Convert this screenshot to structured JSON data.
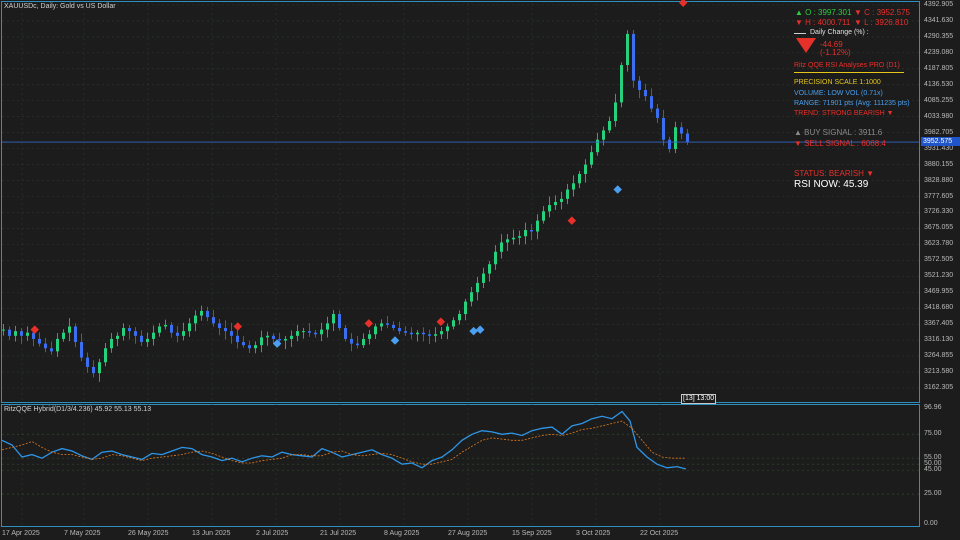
{
  "chart_header": {
    "symbol_line": "XAUUSDc, Daily:  Gold vs US Dollar"
  },
  "info_panel": {
    "open": "▲ O : 3997.301",
    "close": "▼ C : 3952.575",
    "high": "▼ H : 4000.711",
    "low": "▼ L : 3926.810",
    "daily_change_label": "Daily Change (%) :",
    "change_value": "-44.69",
    "change_pct": "(-1.12%)",
    "indicator_name": "Ritz QQE RSI Analyses PRO (D1)",
    "precision": "PRECISION SCALE 1:1000",
    "volume": "VOLUME: LOW VOL (0.71x)",
    "range": "RANGE: 71901 pts (Avg: 111235 pts)",
    "trend": "TREND: STRONG BEARISH ▼",
    "buy_signal": "▲ BUY SIGNAL : 3911.6",
    "sell_signal": "▼ SELL SIGNAL : 6068.4",
    "status": "STATUS: BEARISH ▼",
    "rsi_now": "RSI NOW: 45.39"
  },
  "price_axis": {
    "ticks": [
      "4392.905",
      "4341.630",
      "4290.355",
      "4239.080",
      "4187.805",
      "4136.530",
      "4085.255",
      "4033.980",
      "3982.705",
      "3931.430",
      "3880.155",
      "3828.880",
      "3777.605",
      "3726.330",
      "3675.055",
      "3623.780",
      "3572.505",
      "3521.230",
      "3469.955",
      "3418.680",
      "3367.405",
      "3316.130",
      "3264.855",
      "3213.580",
      "3162.305"
    ],
    "current_price": "3952.575"
  },
  "sub_window": {
    "title": "RitzQQE Hybrid(D1/3/4.236) 45.92 55.13 55.13",
    "ticks": [
      "96.96",
      "75.00",
      "55.00",
      "50.00",
      "45.00",
      "25.00",
      "0.00"
    ]
  },
  "time_axis": {
    "labels": [
      "17 Apr 2025",
      "7 May 2025",
      "26 May 2025",
      "13 Jun 2025",
      "2 Jul 2025",
      "21 Jul 2025",
      "8 Aug 2025",
      "27 Aug 2025",
      "15 Sep 2025",
      "3 Oct 2025",
      "22 Oct 2025"
    ],
    "crosshair_label": "[13] 13:00"
  },
  "colors": {
    "background": "#1c1c1c",
    "bull_candle": "#26d07c",
    "bear_candle": "#3b6ef0",
    "grid": "#2c3a2c",
    "pane_border": "#2f8fbf",
    "rsi_line": "#2e96e8",
    "signal_line": "#e07b1e",
    "up_text": "#2ecc40",
    "down_text": "#e8302a",
    "accent_yellow": "#e6c619",
    "info_blue": "#4a9ff0"
  },
  "chart_data": [
    {
      "type": "candlestick",
      "title": "XAUUSDc, Daily:  Gold vs US Dollar",
      "ylim": [
        3140,
        4400
      ],
      "close_path": [
        [
          0,
          3350
        ],
        [
          6,
          3330
        ],
        [
          12,
          3345
        ],
        [
          18,
          3330
        ],
        [
          24,
          3340
        ],
        [
          30,
          3320
        ],
        [
          36,
          3305
        ],
        [
          42,
          3290
        ],
        [
          48,
          3280
        ],
        [
          54,
          3320
        ],
        [
          60,
          3340
        ],
        [
          66,
          3360
        ],
        [
          72,
          3310
        ],
        [
          78,
          3260
        ],
        [
          84,
          3230
        ],
        [
          90,
          3210
        ],
        [
          96,
          3245
        ],
        [
          102,
          3290
        ],
        [
          108,
          3320
        ],
        [
          114,
          3330
        ],
        [
          120,
          3355
        ],
        [
          126,
          3345
        ],
        [
          132,
          3330
        ],
        [
          138,
          3310
        ],
        [
          144,
          3320
        ],
        [
          150,
          3340
        ],
        [
          156,
          3360
        ],
        [
          162,
          3365
        ],
        [
          168,
          3340
        ],
        [
          174,
          3330
        ],
        [
          180,
          3345
        ],
        [
          186,
          3370
        ],
        [
          192,
          3395
        ],
        [
          198,
          3410
        ],
        [
          204,
          3390
        ],
        [
          210,
          3370
        ],
        [
          216,
          3355
        ],
        [
          222,
          3345
        ],
        [
          228,
          3330
        ],
        [
          234,
          3310
        ],
        [
          240,
          3300
        ],
        [
          246,
          3290
        ],
        [
          252,
          3300
        ],
        [
          258,
          3325
        ],
        [
          264,
          3330
        ],
        [
          270,
          3320
        ],
        [
          276,
          3315
        ],
        [
          282,
          3320
        ],
        [
          288,
          3330
        ],
        [
          294,
          3345
        ],
        [
          300,
          3345
        ],
        [
          306,
          3340
        ],
        [
          312,
          3335
        ],
        [
          318,
          3350
        ],
        [
          324,
          3370
        ],
        [
          330,
          3400
        ],
        [
          336,
          3355
        ],
        [
          342,
          3320
        ],
        [
          348,
          3305
        ],
        [
          354,
          3300
        ],
        [
          360,
          3320
        ],
        [
          366,
          3335
        ],
        [
          372,
          3360
        ],
        [
          378,
          3370
        ],
        [
          384,
          3365
        ],
        [
          390,
          3355
        ],
        [
          396,
          3345
        ],
        [
          402,
          3340
        ],
        [
          408,
          3335
        ],
        [
          414,
          3340
        ],
        [
          420,
          3335
        ],
        [
          426,
          3330
        ],
        [
          432,
          3335
        ],
        [
          438,
          3345
        ],
        [
          444,
          3360
        ],
        [
          450,
          3380
        ],
        [
          456,
          3400
        ],
        [
          462,
          3440
        ],
        [
          468,
          3470
        ],
        [
          474,
          3500
        ],
        [
          480,
          3530
        ],
        [
          486,
          3560
        ],
        [
          492,
          3600
        ],
        [
          498,
          3630
        ],
        [
          504,
          3640
        ],
        [
          510,
          3645
        ],
        [
          516,
          3650
        ],
        [
          522,
          3670
        ],
        [
          528,
          3665
        ],
        [
          534,
          3700
        ],
        [
          540,
          3730
        ],
        [
          546,
          3750
        ],
        [
          552,
          3760
        ],
        [
          558,
          3770
        ],
        [
          564,
          3800
        ],
        [
          570,
          3820
        ],
        [
          576,
          3850
        ],
        [
          582,
          3880
        ],
        [
          588,
          3920
        ],
        [
          594,
          3960
        ],
        [
          600,
          3990
        ],
        [
          606,
          4020
        ],
        [
          612,
          4080
        ],
        [
          618,
          4200
        ],
        [
          624,
          4300
        ],
        [
          630,
          4150
        ],
        [
          636,
          4120
        ],
        [
          642,
          4100
        ],
        [
          648,
          4060
        ],
        [
          654,
          4030
        ],
        [
          660,
          3960
        ],
        [
          666,
          3930
        ],
        [
          672,
          4000
        ],
        [
          678,
          3980
        ],
        [
          684,
          3952
        ]
      ],
      "markers": [
        {
          "type": "sell",
          "date_index": 5,
          "price": 3350
        },
        {
          "type": "sell",
          "date_index": 36,
          "price": 3360
        },
        {
          "type": "buy",
          "date_index": 42,
          "price": 3305
        },
        {
          "type": "buy",
          "date_index": 60,
          "price": 3315
        },
        {
          "type": "sell",
          "date_index": 56,
          "price": 3370
        },
        {
          "type": "buy",
          "date_index": 72,
          "price": 3345
        },
        {
          "type": "sell",
          "date_index": 67,
          "price": 3375
        },
        {
          "type": "buy",
          "date_index": 73,
          "price": 3350
        },
        {
          "type": "sell",
          "date_index": 87,
          "price": 3700
        },
        {
          "type": "buy",
          "date_index": 94,
          "price": 3800
        },
        {
          "type": "sell",
          "date_index": 104,
          "price": 4400
        }
      ],
      "current_price": 3952.575,
      "buy_signal_level": 3911.6,
      "sell_signal_level": 6068.4
    },
    {
      "type": "line",
      "title": "RitzQQE Hybrid(D1/3/4.236) 45.92 55.13 55.13",
      "ylim": [
        0,
        96.96
      ],
      "levels": [
        25,
        45,
        50,
        55,
        75
      ],
      "series": [
        {
          "name": "RSI",
          "values": [
            [
              0,
              70
            ],
            [
              10,
              66
            ],
            [
              20,
              56
            ],
            [
              30,
              58
            ],
            [
              40,
              55
            ],
            [
              50,
              60
            ],
            [
              60,
              63
            ],
            [
              70,
              61
            ],
            [
              80,
              57
            ],
            [
              90,
              54
            ],
            [
              100,
              60
            ],
            [
              110,
              61
            ],
            [
              120,
              58
            ],
            [
              130,
              56
            ],
            [
              140,
              54
            ],
            [
              150,
              59
            ],
            [
              160,
              58
            ],
            [
              170,
              61
            ],
            [
              180,
              64
            ],
            [
              190,
              63
            ],
            [
              200,
              58
            ],
            [
              210,
              56
            ],
            [
              220,
              53
            ],
            [
              230,
              55
            ],
            [
              240,
              52
            ],
            [
              250,
              55
            ],
            [
              260,
              57
            ],
            [
              270,
              56
            ],
            [
              280,
              60
            ],
            [
              290,
              58
            ],
            [
              300,
              57
            ],
            [
              310,
              56
            ],
            [
              320,
              63
            ],
            [
              330,
              60
            ],
            [
              340,
              56
            ],
            [
              350,
              58
            ],
            [
              360,
              60
            ],
            [
              370,
              62
            ],
            [
              380,
              58
            ],
            [
              390,
              55
            ],
            [
              400,
              50
            ],
            [
              410,
              51
            ],
            [
              420,
              47
            ],
            [
              430,
              53
            ],
            [
              440,
              56
            ],
            [
              450,
              62
            ],
            [
              460,
              70
            ],
            [
              470,
              75
            ],
            [
              480,
              78
            ],
            [
              490,
              77
            ],
            [
              500,
              75
            ],
            [
              510,
              76
            ],
            [
              520,
              74
            ],
            [
              530,
              78
            ],
            [
              540,
              80
            ],
            [
              550,
              81
            ],
            [
              560,
              75
            ],
            [
              570,
              82
            ],
            [
              580,
              84
            ],
            [
              590,
              88
            ],
            [
              600,
              90
            ],
            [
              610,
              88
            ],
            [
              620,
              94
            ],
            [
              628,
              86
            ],
            [
              635,
              64
            ],
            [
              645,
              56
            ],
            [
              655,
              50
            ],
            [
              665,
              47
            ],
            [
              675,
              48
            ],
            [
              684,
              46
            ]
          ]
        },
        {
          "name": "Signal",
          "values": [
            [
              0,
              62
            ],
            [
              10,
              64
            ],
            [
              20,
              66
            ],
            [
              30,
              69
            ],
            [
              40,
              64
            ],
            [
              50,
              60
            ],
            [
              60,
              58
            ],
            [
              70,
              58
            ],
            [
              80,
              56
            ],
            [
              90,
              54
            ],
            [
              100,
              55
            ],
            [
              110,
              58
            ],
            [
              120,
              57
            ],
            [
              130,
              55
            ],
            [
              140,
              53
            ],
            [
              150,
              55
            ],
            [
              160,
              56
            ],
            [
              170,
              57
            ],
            [
              180,
              58
            ],
            [
              190,
              60
            ],
            [
              200,
              61
            ],
            [
              210,
              59
            ],
            [
              220,
              56
            ],
            [
              230,
              53
            ],
            [
              240,
              51
            ],
            [
              250,
              51
            ],
            [
              260,
              53
            ],
            [
              270,
              54
            ],
            [
              280,
              55
            ],
            [
              290,
              58
            ],
            [
              300,
              58
            ],
            [
              310,
              57
            ],
            [
              320,
              57
            ],
            [
              330,
              60
            ],
            [
              340,
              61
            ],
            [
              350,
              58
            ],
            [
              360,
              57
            ],
            [
              370,
              58
            ],
            [
              380,
              59
            ],
            [
              390,
              58
            ],
            [
              400,
              55
            ],
            [
              410,
              52
            ],
            [
              420,
              50
            ],
            [
              430,
              50
            ],
            [
              440,
              52
            ],
            [
              450,
              54
            ],
            [
              460,
              60
            ],
            [
              470,
              65
            ],
            [
              480,
              70
            ],
            [
              490,
              72
            ],
            [
              500,
              71
            ],
            [
              510,
              70
            ],
            [
              520,
              70
            ],
            [
              530,
              72
            ],
            [
              540,
              74
            ],
            [
              550,
              75
            ],
            [
              560,
              74
            ],
            [
              570,
              76
            ],
            [
              580,
              79
            ],
            [
              590,
              80
            ],
            [
              600,
              82
            ],
            [
              610,
              84
            ],
            [
              620,
              86
            ],
            [
              630,
              80
            ],
            [
              640,
              70
            ],
            [
              650,
              60
            ],
            [
              660,
              56
            ],
            [
              670,
              55
            ],
            [
              684,
              55
            ]
          ]
        }
      ]
    }
  ]
}
